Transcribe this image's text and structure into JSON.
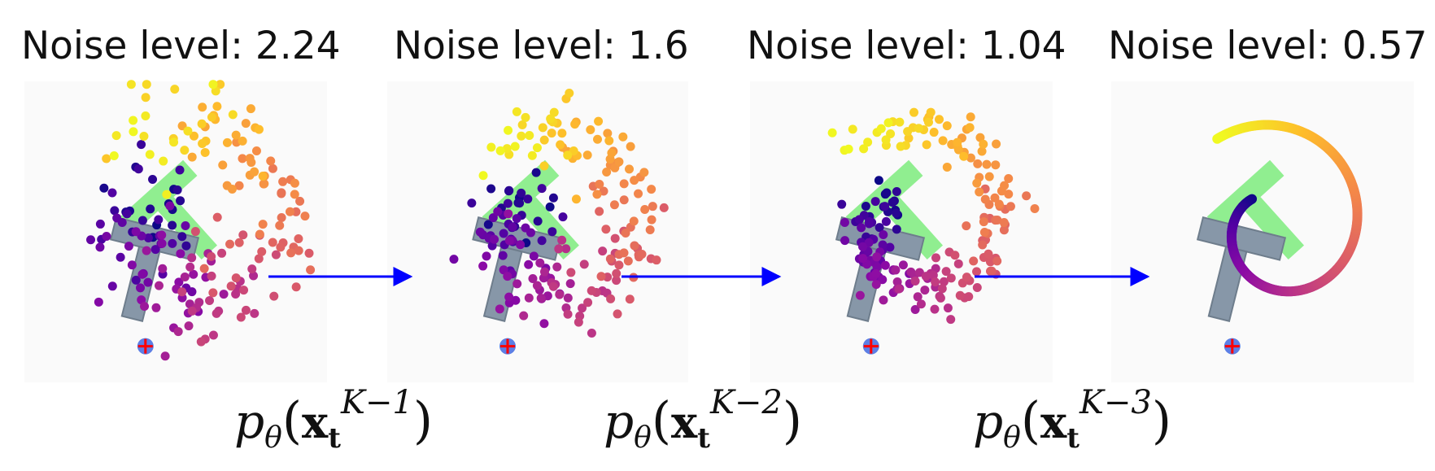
{
  "panels": [
    {
      "title": "Noise level: 2.24",
      "noise": 2.24
    },
    {
      "title": "Noise level: 1.6",
      "noise": 1.6
    },
    {
      "title": "Noise level: 1.04",
      "noise": 1.04
    },
    {
      "title": "Noise level: 0.57",
      "noise": 0.57
    }
  ],
  "transitions": [
    {
      "base": "p",
      "sub": "θ",
      "open": "(",
      "var": "x",
      "var_sub": "t",
      "sup": "K−1",
      "close": ")"
    },
    {
      "base": "p",
      "sub": "θ",
      "open": "(",
      "var": "x",
      "var_sub": "t",
      "sup": "K−2",
      "close": ")"
    },
    {
      "base": "p",
      "sub": "θ",
      "open": "(",
      "var": "x",
      "var_sub": "t",
      "sup": "K−3",
      "close": ")"
    }
  ],
  "colors": {
    "panel_bg": "#fafafa",
    "arrow": "#0000ff",
    "target_t": "#90ee90",
    "block_t": "#8797a8",
    "block_t_edge": "#6e7d8c",
    "agent": "#4169e1",
    "agent_marker": "#ff0000",
    "colormap": "plasma"
  }
}
